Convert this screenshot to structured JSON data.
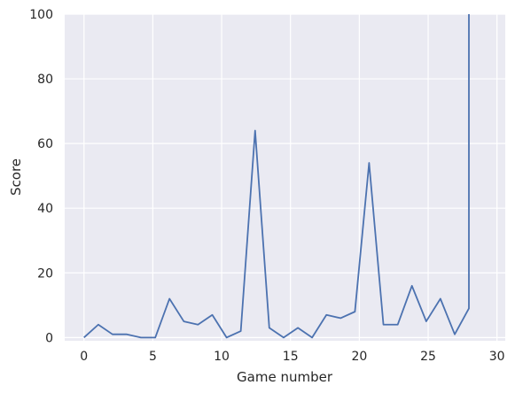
{
  "chart_data": {
    "type": "line",
    "title": "",
    "xlabel": "Game number",
    "ylabel": "Score",
    "xlim": [
      -1.4,
      30.6
    ],
    "ylim": [
      -1,
      100
    ],
    "x_ticks": [
      0,
      5,
      10,
      15,
      20,
      25,
      30
    ],
    "y_ticks": [
      0,
      20,
      40,
      60,
      80,
      100
    ],
    "grid": true,
    "background_color": "#eaeaf2",
    "grid_color": "#ffffff",
    "series": [
      {
        "color": "#4c72b0",
        "x": [
          0,
          1.04,
          2.07,
          3.11,
          4.14,
          5.18,
          6.21,
          7.25,
          8.28,
          9.32,
          10.36,
          11.39,
          12.43,
          13.46,
          14.5,
          15.54,
          16.57,
          17.61,
          18.64,
          19.68,
          20.71,
          21.75,
          22.79,
          23.82,
          24.86,
          25.89,
          26.93,
          27.96,
          27.96
        ],
        "y": [
          0,
          4,
          1,
          1,
          0,
          0,
          12,
          5,
          4,
          7,
          0,
          2,
          64,
          3,
          0,
          3,
          0,
          7,
          6,
          8,
          54,
          4,
          4,
          16,
          5,
          12,
          1,
          9,
          100
        ]
      }
    ]
  }
}
